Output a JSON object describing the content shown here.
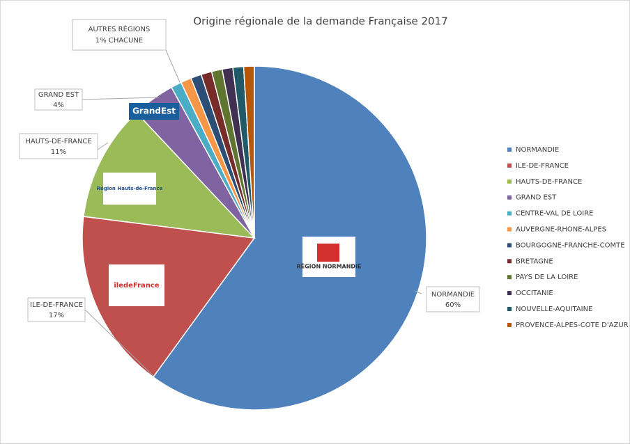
{
  "chart_data": {
    "type": "pie",
    "title": "Origine régionale de la demande Française 2017",
    "categories": [
      "NORMANDIE",
      "ILE-DE-FRANCE",
      "HAUTS-DE-FRANCE",
      "GRAND EST",
      "CENTRE-VAL DE LOIRE",
      "AUVERGNE-RHONE-ALPES",
      "BOURGOGNE-FRANCHE-COMTE",
      "BRETAGNE",
      "PAYS DE LA LOIRE",
      "OCCITANIE",
      "NOUVELLE-AQUITAINE",
      "PROVENCE-ALPES-COTE D'AZUR"
    ],
    "values": [
      60,
      17,
      11,
      4,
      1,
      1,
      1,
      1,
      1,
      1,
      1,
      1
    ],
    "value_labels": [
      "60%",
      "17%",
      "11%",
      "4%",
      null,
      null,
      null,
      null,
      null,
      null,
      null,
      null
    ],
    "colors": [
      "#4f81bd",
      "#c0504d",
      "#9bbb59",
      "#8064a2",
      "#4bacc6",
      "#f79646",
      "#2c4d75",
      "#772c2a",
      "#5f7530",
      "#403152",
      "#215968",
      "#b65708"
    ],
    "annotation": [
      "AUTRES RÉGIONS",
      "1% CHACUNE"
    ],
    "logos": [
      "GrandEst",
      "Région Hauts-de-France",
      "îledeFrance",
      "RÉGION NORMANDIE"
    ],
    "legend": "right"
  }
}
